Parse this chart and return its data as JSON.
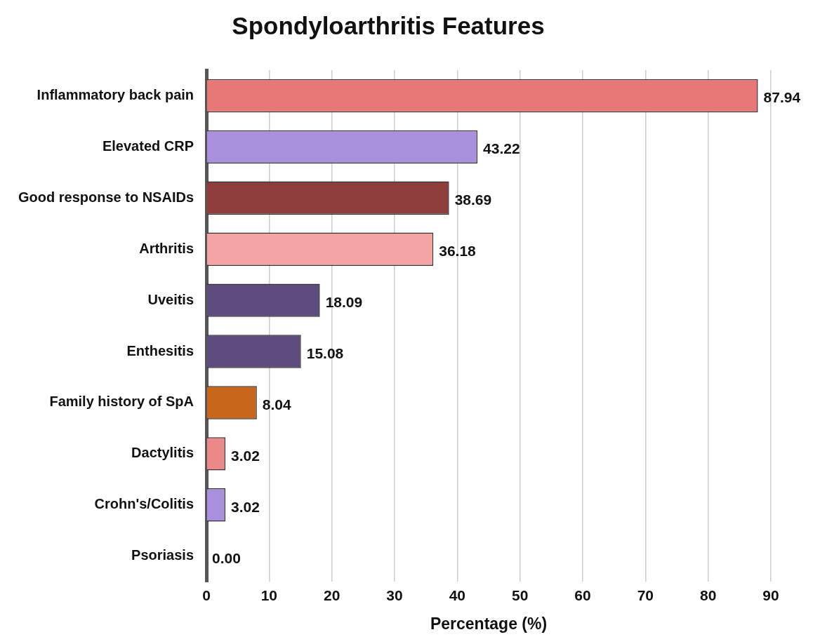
{
  "chart_data": {
    "type": "bar",
    "orientation": "horizontal",
    "title": "Spondyloarthritis Features",
    "xlabel": "Percentage (%)",
    "categories": [
      "Inflammatory back pain",
      "Elevated CRP",
      "Good response to NSAIDs",
      "Arthritis",
      "Uveitis",
      "Enthesitis",
      "Family history of SpA",
      "Dactylitis",
      "Crohn's/Colitis",
      "Psoriasis"
    ],
    "values": [
      87.94,
      43.22,
      38.69,
      36.18,
      18.09,
      15.08,
      8.04,
      3.02,
      3.02,
      0
    ],
    "value_labels": [
      "87.94",
      "43.22",
      "38.69",
      "36.18",
      "18.09",
      "15.08",
      "8.04",
      "3.02",
      "3.02",
      "0.00"
    ],
    "colors": [
      "#e87878",
      "#a890dc",
      "#8e3c3c",
      "#f4a4a4",
      "#5f4c7e",
      "#5f4c7e",
      "#c8661c",
      "#ec8888",
      "#a890dc",
      "#c8661c"
    ],
    "xlim": [
      0,
      90
    ],
    "xticks": [
      0,
      10,
      20,
      30,
      40,
      50,
      60,
      70,
      80,
      90
    ],
    "grid": "x",
    "legend": false
  }
}
